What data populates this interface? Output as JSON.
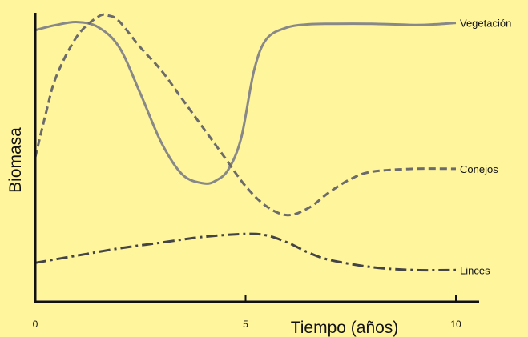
{
  "background_color": "#FFF59D",
  "chart_data": {
    "type": "line",
    "xlabel": "Tiempo (años)",
    "ylabel": "Biomasa",
    "xlim": [
      0,
      10.6
    ],
    "ylim": [
      0,
      10
    ],
    "x_ticks": [
      0,
      5,
      10
    ],
    "x_tick_labels": [
      "0",
      "5",
      "10"
    ],
    "y_ticks_shown": false,
    "grid": false,
    "series": [
      {
        "name": "Vegetación",
        "style": "solid",
        "color": "#888888",
        "x": [
          0,
          0.5,
          1.0,
          1.5,
          2.0,
          2.5,
          3.0,
          3.5,
          4.0,
          4.3,
          4.6,
          4.9,
          5.2,
          5.5,
          6.0,
          6.5,
          7.0,
          8.0,
          9.0,
          9.5,
          10.0
        ],
        "y": [
          9.4,
          9.58,
          9.68,
          9.5,
          8.8,
          7.2,
          5.5,
          4.4,
          4.1,
          4.2,
          4.6,
          5.7,
          8.0,
          9.1,
          9.5,
          9.6,
          9.62,
          9.62,
          9.58,
          9.6,
          9.65
        ]
      },
      {
        "name": "Conejos",
        "style": "dashed",
        "color": "#6b6b6b",
        "x": [
          0,
          0.25,
          0.5,
          1.0,
          1.5,
          1.75,
          2.0,
          2.5,
          3.0,
          3.5,
          4.0,
          4.5,
          5.0,
          5.5,
          6.0,
          6.5,
          7.0,
          7.5,
          8.0,
          9.0,
          10.0
        ],
        "y": [
          5.0,
          6.5,
          7.8,
          9.2,
          9.87,
          9.9,
          9.7,
          8.8,
          8.0,
          7.0,
          6.0,
          5.0,
          4.0,
          3.3,
          3.0,
          3.25,
          3.8,
          4.25,
          4.5,
          4.6,
          4.6
        ]
      },
      {
        "name": "Linces",
        "style": "dashdot",
        "color": "#444444",
        "x": [
          0,
          1.0,
          2.0,
          3.0,
          4.0,
          5.0,
          5.5,
          6.0,
          6.5,
          7.0,
          8.0,
          9.0,
          10.0
        ],
        "y": [
          1.35,
          1.6,
          1.85,
          2.05,
          2.25,
          2.35,
          2.3,
          2.05,
          1.7,
          1.45,
          1.2,
          1.1,
          1.1
        ]
      }
    ]
  }
}
